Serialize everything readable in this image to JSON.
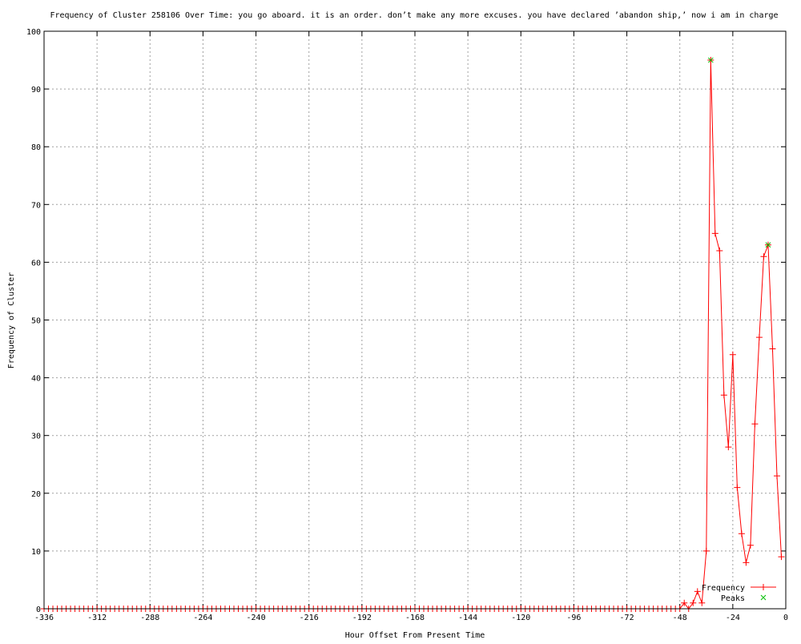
{
  "chart_data": {
    "type": "line",
    "title": "Frequency of Cluster 258106 Over Time: you go aboard. it is an order. don’t make any more excuses. you have declared ’abandon ship,’ now i am in charge",
    "xlabel": "Hour Offset From Present Time",
    "ylabel": "Frequency of Cluster",
    "xlim": [
      -336,
      0
    ],
    "ylim": [
      0,
      100
    ],
    "xticks": [
      -336,
      -312,
      -288,
      -264,
      -240,
      -216,
      -192,
      -168,
      -144,
      -120,
      -96,
      -72,
      -48,
      -24,
      0
    ],
    "yticks": [
      0,
      10,
      20,
      30,
      40,
      50,
      60,
      70,
      80,
      90,
      100
    ],
    "grid": true,
    "legend_position": "bottom-right",
    "series": [
      {
        "name": "Frequency",
        "color": "#ff0000",
        "marker": "plus",
        "nonzero_points": {
          "-46": 1,
          "-42": 1,
          "-40": 3,
          "-38": 1,
          "-36": 10,
          "-34": 95,
          "-32": 65,
          "-30": 62,
          "-28": 37,
          "-26": 28,
          "-24": 44,
          "-22": 21,
          "-20": 13,
          "-18": 8,
          "-16": 11,
          "-14": 32,
          "-12": 47,
          "-10": 61,
          "-8": 63,
          "-6": 45,
          "-4": 23,
          "-2": 9
        },
        "x_range": [
          -336,
          -2
        ],
        "x_step": 2,
        "default_value": 0
      },
      {
        "name": "Peaks",
        "color": "#00c000",
        "marker": "x",
        "points": [
          [
            -34,
            95
          ],
          [
            -8,
            63
          ]
        ]
      }
    ]
  }
}
